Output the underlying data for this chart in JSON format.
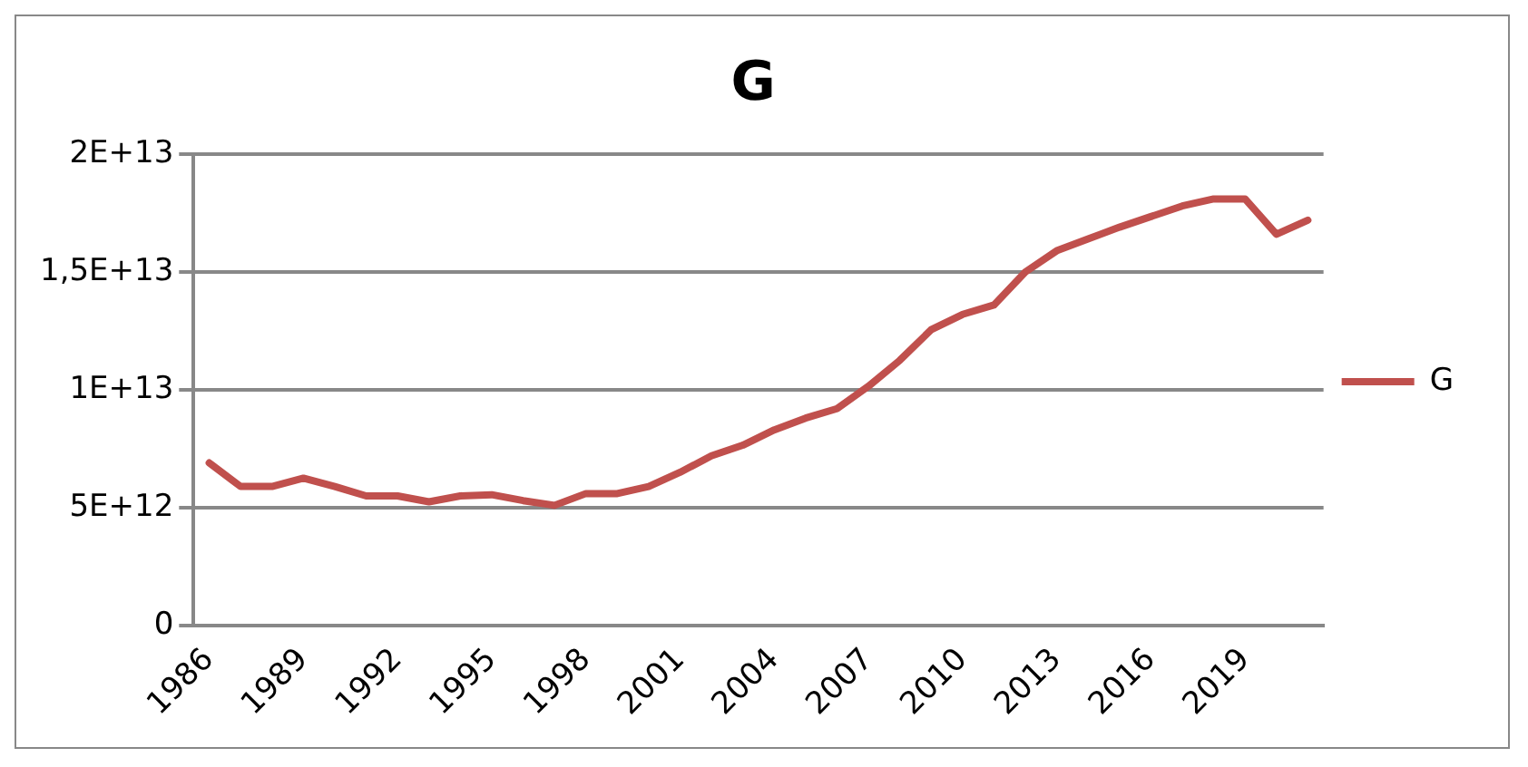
{
  "chart_data": {
    "type": "line",
    "title": "G",
    "categories": [
      "1986",
      null,
      null,
      "1989",
      null,
      null,
      "1992",
      null,
      null,
      "1995",
      null,
      null,
      "1998",
      null,
      null,
      "2001",
      null,
      null,
      "2004",
      null,
      null,
      "2007",
      null,
      null,
      "2010",
      null,
      null,
      "2013",
      null,
      null,
      "2016",
      null,
      null,
      "2019",
      null,
      null
    ],
    "series": [
      {
        "name": "G",
        "color": "#c0504d",
        "values": [
          6900000000000.0,
          5900000000000.0,
          5900000000000.0,
          6250000000000.0,
          5900000000000.0,
          5500000000000.0,
          5500000000000.0,
          5250000000000.0,
          5500000000000.0,
          5550000000000.0,
          5300000000000.0,
          5100000000000.0,
          5600000000000.0,
          5600000000000.0,
          5900000000000.0,
          6500000000000.0,
          7200000000000.0,
          7650000000000.0,
          8300000000000.0,
          8800000000000.0,
          9200000000000.0,
          10150000000000.0,
          11250000000000.0,
          12550000000000.0,
          13200000000000.0,
          13600000000000.0,
          15000000000000.0,
          15900000000000.0,
          16400000000000.0,
          16900000000000.0,
          17350000000000.0,
          17800000000000.0,
          18100000000000.0,
          18100000000000.0,
          16600000000000.0,
          17200000000000.0
        ]
      }
    ],
    "ylim": [
      0,
      20000000000000.0
    ],
    "yticks": [
      {
        "value": 0,
        "label": "0"
      },
      {
        "value": 5000000000000.0,
        "label": "5E+12"
      },
      {
        "value": 10000000000000.0,
        "label": "1E+13"
      },
      {
        "value": 15000000000000.0,
        "label": "1,5E+13"
      },
      {
        "value": 20000000000000.0,
        "label": "2E+13"
      }
    ],
    "grid": "y",
    "legend": "right",
    "marker": "none",
    "line_style": "solid"
  }
}
